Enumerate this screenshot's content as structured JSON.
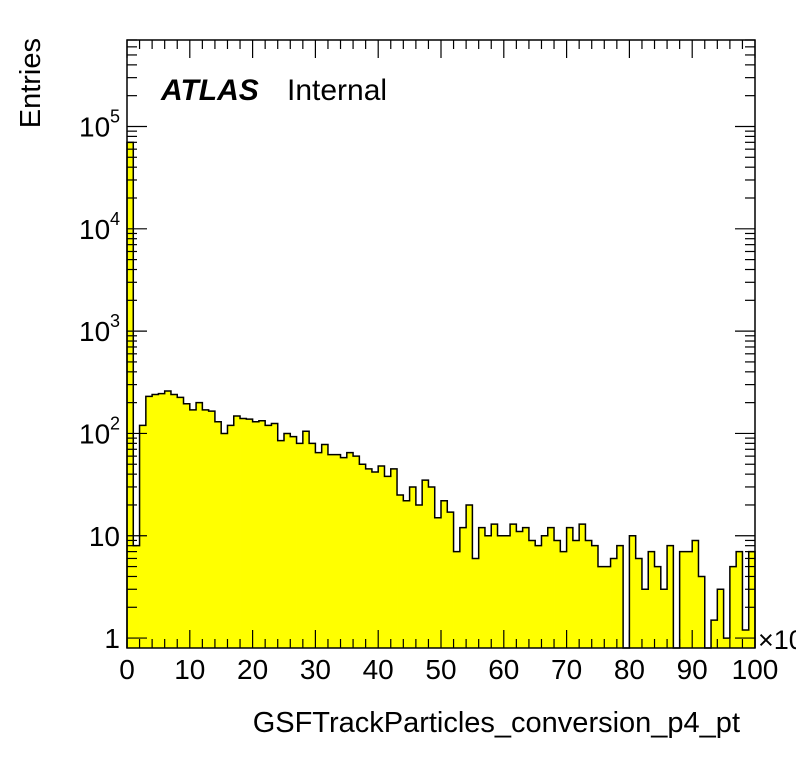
{
  "chart_data": {
    "type": "histogram",
    "title": "",
    "xlabel": "GSFTrackParticles_conversion_p4_pt",
    "ylabel": "Entries",
    "x_multiplier_label": "×10",
    "atlas_label": "ATLAS",
    "atlas_sublabel": "Internal",
    "yscale": "log",
    "xlim": [
      0,
      100
    ],
    "ylim": [
      0.8,
      700000
    ],
    "x_ticks": [
      "0",
      "10",
      "20",
      "30",
      "40",
      "50",
      "60",
      "70",
      "80",
      "90",
      "100"
    ],
    "y_ticks": [
      {
        "value": 1,
        "base": "1",
        "exp": ""
      },
      {
        "value": 10,
        "base": "10",
        "exp": ""
      },
      {
        "value": 100,
        "base": "10",
        "exp": "2"
      },
      {
        "value": 1000,
        "base": "10",
        "exp": "3"
      },
      {
        "value": 10000,
        "base": "10",
        "exp": "4"
      },
      {
        "value": 100000,
        "base": "10",
        "exp": "5"
      }
    ],
    "fill_color": "#ffff00",
    "line_color": "#000000",
    "grid": false,
    "bin_width": 1,
    "bin_start": 0,
    "values": [
      70000,
      8,
      120,
      230,
      240,
      245,
      260,
      240,
      225,
      195,
      170,
      200,
      170,
      165,
      130,
      100,
      120,
      148,
      140,
      138,
      130,
      133,
      120,
      125,
      85,
      100,
      93,
      80,
      105,
      80,
      65,
      78,
      62,
      62,
      58,
      65,
      60,
      50,
      45,
      42,
      48,
      38,
      45,
      25,
      22,
      30,
      20,
      35,
      30,
      15,
      22,
      17,
      7,
      12,
      20,
      6,
      12,
      10,
      13,
      10,
      10,
      13,
      11,
      12,
      9,
      8,
      10,
      12,
      9,
      7,
      12,
      9,
      13,
      9,
      8,
      5,
      5,
      6,
      8,
      0.5,
      10,
      6,
      3,
      7,
      5,
      3,
      8,
      0.5,
      7,
      7,
      9,
      4,
      0.5,
      1.5,
      3,
      1,
      5,
      7,
      1.2,
      7
    ]
  }
}
